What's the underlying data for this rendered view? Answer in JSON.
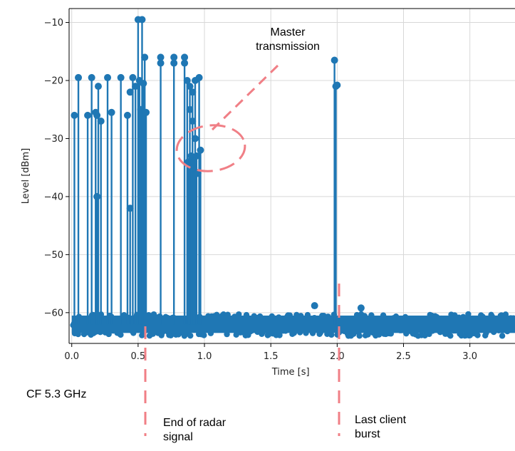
{
  "chart_data": {
    "type": "scatter",
    "xlabel": "Time [s]",
    "ylabel": "Level [dBm]",
    "xlim": [
      -0.02,
      3.34
    ],
    "ylim": [
      -65.3,
      -7.6
    ],
    "x_ticks": [
      0.0,
      0.5,
      1.0,
      1.5,
      2.0,
      2.5,
      3.0
    ],
    "x_tick_labels": [
      "0.0",
      "0.5",
      "1.0",
      "1.5",
      "2.0",
      "2.5",
      "3.0"
    ],
    "y_ticks": [
      -10,
      -20,
      -30,
      -40,
      -50,
      -60
    ],
    "y_tick_labels": [
      "−10",
      "−20",
      "−30",
      "−40",
      "−50",
      "−60"
    ],
    "grid": true,
    "baseline": -62,
    "noise_floor": [
      -64,
      -59
    ],
    "series_color": "#1f77b4",
    "stems": [
      {
        "x": 0.02,
        "top": -26
      },
      {
        "x": 0.05,
        "top": -19.5
      },
      {
        "x": 0.12,
        "top": -26
      },
      {
        "x": 0.15,
        "top": -19.5
      },
      {
        "x": 0.18,
        "top": -25.5
      },
      {
        "x": 0.19,
        "top": -40
      },
      {
        "x": 0.2,
        "top": -21
      },
      {
        "x": 0.22,
        "top": -27
      },
      {
        "x": 0.27,
        "top": -19.5
      },
      {
        "x": 0.3,
        "top": -25.5
      },
      {
        "x": 0.37,
        "top": -19.5
      },
      {
        "x": 0.42,
        "top": -26
      },
      {
        "x": 0.44,
        "top": -42
      },
      {
        "x": 0.46,
        "top": -19.5
      },
      {
        "x": 0.48,
        "top": -21
      },
      {
        "x": 0.5,
        "top": -9.5
      },
      {
        "x": 0.51,
        "top": -20
      },
      {
        "x": 0.52,
        "top": -25
      },
      {
        "x": 0.53,
        "top": -9.5
      },
      {
        "x": 0.54,
        "top": -20.5
      },
      {
        "x": 0.55,
        "top": -16
      },
      {
        "x": 0.56,
        "top": -25.5
      },
      {
        "x": 0.67,
        "top": -16
      },
      {
        "x": 0.77,
        "top": -16
      },
      {
        "x": 0.85,
        "top": -16
      },
      {
        "x": 0.87,
        "top": -20
      },
      {
        "x": 0.88,
        "top": -34
      },
      {
        "x": 0.89,
        "top": -21
      },
      {
        "x": 0.9,
        "top": -33
      },
      {
        "x": 0.91,
        "top": -22
      },
      {
        "x": 0.92,
        "top": -35
      },
      {
        "x": 0.93,
        "top": -20
      },
      {
        "x": 0.94,
        "top": -33
      },
      {
        "x": 0.96,
        "top": -19.5
      },
      {
        "x": 0.97,
        "top": -32
      },
      {
        "x": 1.98,
        "top": -16.5
      },
      {
        "x": 1.99,
        "top": -21
      }
    ],
    "extra_points": [
      {
        "x": 0.67,
        "y": -17
      },
      {
        "x": 0.77,
        "y": -17
      },
      {
        "x": 0.85,
        "y": -17
      },
      {
        "x": 0.89,
        "y": -25
      },
      {
        "x": 0.91,
        "y": -27
      },
      {
        "x": 0.92,
        "y": -34
      },
      {
        "x": 0.95,
        "y": -36
      },
      {
        "x": 0.93,
        "y": -30
      },
      {
        "x": 2.0,
        "y": -20.8
      },
      {
        "x": 1.83,
        "y": -58.8
      },
      {
        "x": 2.18,
        "y": -59.2
      },
      {
        "x": 0.44,
        "y": -22
      },
      {
        "x": 0.19,
        "y": -26
      }
    ]
  },
  "annotations": {
    "master_transmission": "Master\ntransmission",
    "end_of_radar": "End of radar\nsignal",
    "last_client": "Last client\nburst",
    "cf": "CF 5.3 GHz"
  },
  "annotation_color": "#f07f86"
}
